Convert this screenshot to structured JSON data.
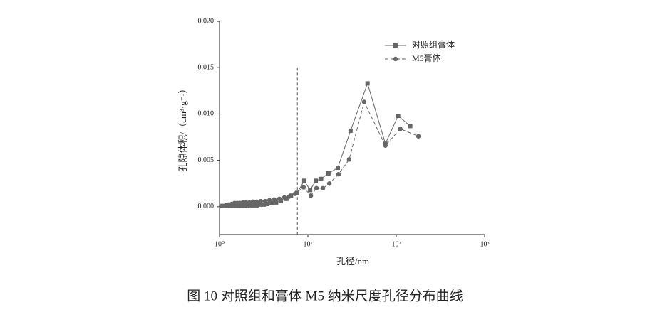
{
  "chart_data": {
    "type": "line",
    "xscale": "log",
    "xlabel": "孔径/nm",
    "ylabel": "孔隙体积/（cm³·g⁻¹）",
    "caption": "图 10  对照组和膏体 M5 纳米尺度孔径分布曲线",
    "xlim": [
      1,
      1000
    ],
    "xticks": [
      {
        "value": 1,
        "label": "10⁰"
      },
      {
        "value": 10,
        "label": "10¹"
      },
      {
        "value": 100,
        "label": "10²"
      },
      {
        "value": 1000,
        "label": "10³"
      }
    ],
    "ylim": [
      -0.003,
      0.02
    ],
    "yticks": [
      {
        "value": 0,
        "label": "0.000"
      },
      0.005,
      {
        "value": 0.01,
        "label": "0.010"
      },
      0.015,
      {
        "value": 0.02,
        "label": "0.020"
      }
    ],
    "reference_x": 7.6,
    "legend_position": "upper right",
    "series": [
      {
        "name": "对照组膏体",
        "color": "#666666",
        "marker": "square",
        "dash": false,
        "x": [
          1.06,
          1.14,
          1.23,
          1.32,
          1.42,
          1.53,
          1.65,
          1.78,
          1.92,
          2.06,
          2.22,
          2.39,
          2.63,
          2.88,
          3.16,
          3.47,
          3.88,
          4.37,
          4.94,
          5.72,
          6.45,
          7.55,
          9.1,
          10.6,
          12.3,
          14.1,
          17.1,
          21.8,
          30.4,
          47.3,
          75.3,
          105,
          144
        ],
        "values": [
          8e-05,
          8e-05,
          8e-05,
          8e-05,
          8e-05,
          8e-05,
          8e-05,
          8e-05,
          8e-05,
          0.00015,
          0.00015,
          0.00015,
          0.00015,
          0.00023,
          0.00023,
          0.0003,
          0.0004,
          0.00046,
          0.0006,
          0.00085,
          0.0012,
          0.0015,
          0.0028,
          0.0018,
          0.0028,
          0.003,
          0.0036,
          0.0042,
          0.0082,
          0.0133,
          0.0068,
          0.0098,
          0.0087
        ]
      },
      {
        "name": "M5膏体",
        "color": "#666666",
        "marker": "circle",
        "dash": true,
        "x": [
          1.04,
          1.1,
          1.18,
          1.27,
          1.37,
          1.48,
          1.59,
          1.71,
          1.85,
          1.99,
          2.18,
          2.39,
          2.63,
          2.93,
          3.28,
          3.67,
          4.17,
          4.76,
          5.42,
          6.17,
          7.16,
          8.93,
          10.8,
          12.5,
          14.8,
          17.5,
          22.2,
          29.3,
          43.3,
          75.3,
          111,
          178
        ],
        "values": [
          8e-05,
          8e-05,
          0.00015,
          0.00023,
          0.0003,
          0.0004,
          0.0004,
          0.0004,
          0.00046,
          0.00046,
          0.00046,
          0.00054,
          0.00054,
          0.0006,
          0.0006,
          0.0007,
          0.00077,
          0.00085,
          0.001,
          0.0011,
          0.0014,
          0.0021,
          0.0012,
          0.002,
          0.002,
          0.0025,
          0.0035,
          0.0051,
          0.0113,
          0.0066,
          0.0084,
          0.0076
        ]
      }
    ]
  }
}
